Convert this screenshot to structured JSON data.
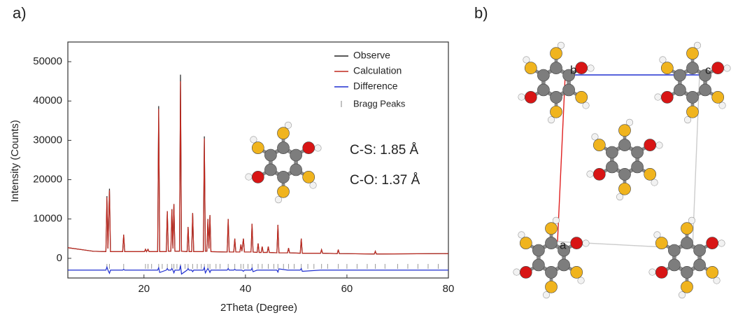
{
  "chart_data": {
    "type": "line",
    "panel_label": "a)",
    "xlabel": "2Theta (Degree)",
    "ylabel": "Intensity (Counts)",
    "xlim": [
      5,
      80
    ],
    "ylim": [
      -5000,
      55000
    ],
    "xticks": [
      20,
      40,
      60,
      80
    ],
    "yticks": [
      0,
      10000,
      20000,
      30000,
      40000,
      50000
    ],
    "legend": "upper right",
    "annotations": [
      "C-S: 1.85 Å",
      "C-O: 1.37 Å"
    ],
    "x": [
      5,
      10,
      12.5,
      12.7,
      12.9,
      13.2,
      13.4,
      15.8,
      16.0,
      16.2,
      20.1,
      20.3,
      20.5,
      20.8,
      21.0,
      22.7,
      22.9,
      23.1,
      24.4,
      24.6,
      24.8,
      25.3,
      25.5,
      25.7,
      25.9,
      26.1,
      27.0,
      27.2,
      27.4,
      28.5,
      28.7,
      28.9,
      29.4,
      29.6,
      29.8,
      31.7,
      31.9,
      32.1,
      32.4,
      32.6,
      32.8,
      33.0,
      33.2,
      36.4,
      36.6,
      36.8,
      37.7,
      37.9,
      38.1,
      38.9,
      39.1,
      39.3,
      39.6,
      39.8,
      41.1,
      41.3,
      41.5,
      42.3,
      42.5,
      42.7,
      43.1,
      43.3,
      43.5,
      44.3,
      44.5,
      44.7,
      46.2,
      46.4,
      46.6,
      48.3,
      48.5,
      48.7,
      50.8,
      51.0,
      51.2,
      54.8,
      55.0,
      55.2,
      58.1,
      58.3,
      58.5,
      65.4,
      65.6,
      65.8,
      80
    ],
    "series": [
      {
        "name": "Observe",
        "color": "#222222",
        "values": [
          2700,
          1800,
          1700,
          15800,
          2500,
          17700,
          1700,
          1700,
          6000,
          1700,
          1700,
          2300,
          1700,
          2300,
          1700,
          1700,
          38700,
          1700,
          1700,
          12000,
          1800,
          1800,
          12500,
          2500,
          13800,
          1800,
          1800,
          46700,
          1800,
          1700,
          8000,
          1700,
          1700,
          11500,
          1700,
          1700,
          31000,
          1800,
          1800,
          10000,
          2500,
          11000,
          1700,
          1600,
          10000,
          1600,
          1600,
          5000,
          1600,
          1600,
          3500,
          1800,
          5000,
          1600,
          1600,
          8800,
          1600,
          1500,
          3800,
          1500,
          1500,
          3000,
          1500,
          1500,
          3000,
          1500,
          1400,
          8500,
          1400,
          1400,
          2600,
          1400,
          1300,
          5000,
          1300,
          1300,
          2200,
          1300,
          1200,
          2200,
          1200,
          1100,
          1800,
          1100,
          1200
        ]
      },
      {
        "name": "Calculation",
        "color": "#c0281e",
        "values": [
          2700,
          1800,
          1700,
          15500,
          2500,
          17300,
          1700,
          1700,
          6000,
          1700,
          1700,
          2300,
          1700,
          2300,
          1700,
          1700,
          38000,
          1700,
          1700,
          12000,
          1800,
          1800,
          12500,
          2500,
          13800,
          1800,
          1800,
          45000,
          1800,
          1700,
          8000,
          1700,
          1700,
          11500,
          1700,
          1700,
          30500,
          1800,
          1800,
          10000,
          2500,
          11000,
          1700,
          1600,
          10000,
          1600,
          1600,
          5000,
          1600,
          1600,
          3500,
          1800,
          5000,
          1600,
          1600,
          8800,
          1600,
          1500,
          3800,
          1500,
          1500,
          3000,
          1500,
          1500,
          3000,
          1500,
          1400,
          8500,
          1400,
          1400,
          2600,
          1400,
          1300,
          5000,
          1300,
          1300,
          2200,
          1300,
          1200,
          2200,
          1200,
          1100,
          1800,
          1100,
          1200
        ]
      },
      {
        "name": "Difference",
        "color": "#1f2fd0",
        "values": [
          -3000,
          -3000,
          -3000,
          -2200,
          -3000,
          -3800,
          -3000,
          -3000,
          -2800,
          -3000,
          -3000,
          -3000,
          -3000,
          -3000,
          -3000,
          -3000,
          -2400,
          -3600,
          -3000,
          -2600,
          -3000,
          -3000,
          -2600,
          -3000,
          -3700,
          -3000,
          -3000,
          -1800,
          -4000,
          -3000,
          -2600,
          -3000,
          -3000,
          -3400,
          -3000,
          -3000,
          -2300,
          -3700,
          -3000,
          -2600,
          -3000,
          -3600,
          -3000,
          -3000,
          -2600,
          -3000,
          -3000,
          -2800,
          -3000,
          -3000,
          -3000,
          -3000,
          -3300,
          -3000,
          -3000,
          -2500,
          -3400,
          -3000,
          -3000,
          -3000,
          -3000,
          -3000,
          -3000,
          -3000,
          -3000,
          -3000,
          -3000,
          -3500,
          -2700,
          -3000,
          -3000,
          -3000,
          -3000,
          -2600,
          -3300,
          -3000,
          -3000,
          -3000,
          -3000,
          -3000,
          -3000,
          -3000,
          -3000,
          -3000,
          -3000
        ]
      }
    ],
    "bragg_peaks": {
      "name": "Bragg Peaks",
      "color": "#999999",
      "x": [
        12.7,
        13.2,
        16.0,
        20.3,
        20.8,
        21.5,
        22.9,
        23.6,
        24.6,
        25.5,
        25.9,
        26.5,
        27.2,
        28.1,
        28.7,
        29.6,
        30.5,
        31.3,
        31.9,
        32.6,
        33.0,
        34.2,
        35.0,
        36.6,
        37.9,
        39.1,
        39.6,
        40.5,
        41.3,
        42.5,
        43.3,
        44.5,
        45.6,
        46.4,
        47.5,
        48.5,
        49.6,
        51.0,
        52.3,
        53.5,
        55.0,
        56.2,
        58.3,
        60.0,
        62.0,
        64.0,
        65.6,
        67.5,
        70,
        72,
        74,
        76,
        78
      ]
    }
  },
  "structure": {
    "panel_label": "b)",
    "cell_axes": [
      "a",
      "b",
      "c"
    ]
  }
}
